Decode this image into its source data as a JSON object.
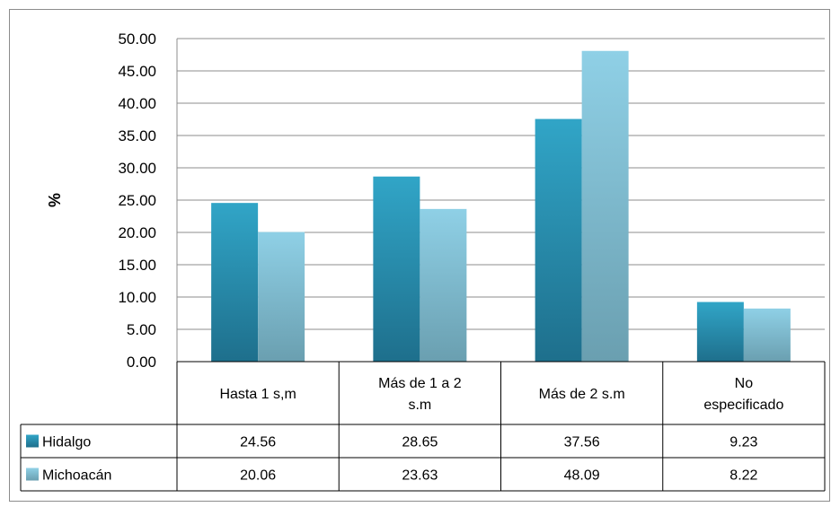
{
  "chart_data": {
    "type": "bar",
    "ylabel": "%",
    "ylim": [
      0,
      50
    ],
    "yticks": [
      "0.00",
      "5.00",
      "10.00",
      "15.00",
      "20.00",
      "25.00",
      "30.00",
      "35.00",
      "40.00",
      "45.00",
      "50.00"
    ],
    "categories": [
      [
        "Hasta 1 s,m"
      ],
      [
        "Más de 1 a 2",
        "s.m"
      ],
      [
        "Más de 2 s.m"
      ],
      [
        "No",
        "especificado"
      ]
    ],
    "series": [
      {
        "name": "Hidalgo",
        "values": [
          24.56,
          28.65,
          37.56,
          9.23
        ],
        "labels": [
          "24.56",
          "28.65",
          "37.56",
          "9.23"
        ],
        "color": "#2e9bbd"
      },
      {
        "name": "Michoacán",
        "values": [
          20.06,
          23.63,
          48.09,
          8.22
        ],
        "labels": [
          "20.06",
          "23.63",
          "48.09",
          "8.22"
        ],
        "color": "#8ccde2"
      }
    ],
    "grid": true,
    "legend": "data-table"
  }
}
